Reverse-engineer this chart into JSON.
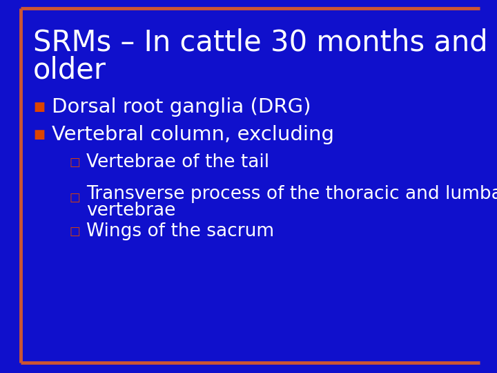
{
  "background_color": "#1010cc",
  "border_color": "#cc5533",
  "title_line1": "SRMs – In cattle 30 months and",
  "title_line2": "older",
  "title_color": "#ffffff",
  "title_fontsize": 30,
  "title_fontweight": "normal",
  "text_color": "#ffffff",
  "bullet_marker_color": "#dd4400",
  "sub_marker_color": "#dd4400",
  "bullet1": "Dorsal root ganglia (DRG)",
  "bullet2": "Vertebral column, excluding",
  "sub1": "Vertebrae of the tail",
  "sub2_line1": "Transverse process of the thoracic and lumbar",
  "sub2_line2": "vertebrae",
  "sub3": "Wings of the sacrum",
  "bullet_fontsize": 21,
  "sub_fontsize": 19
}
